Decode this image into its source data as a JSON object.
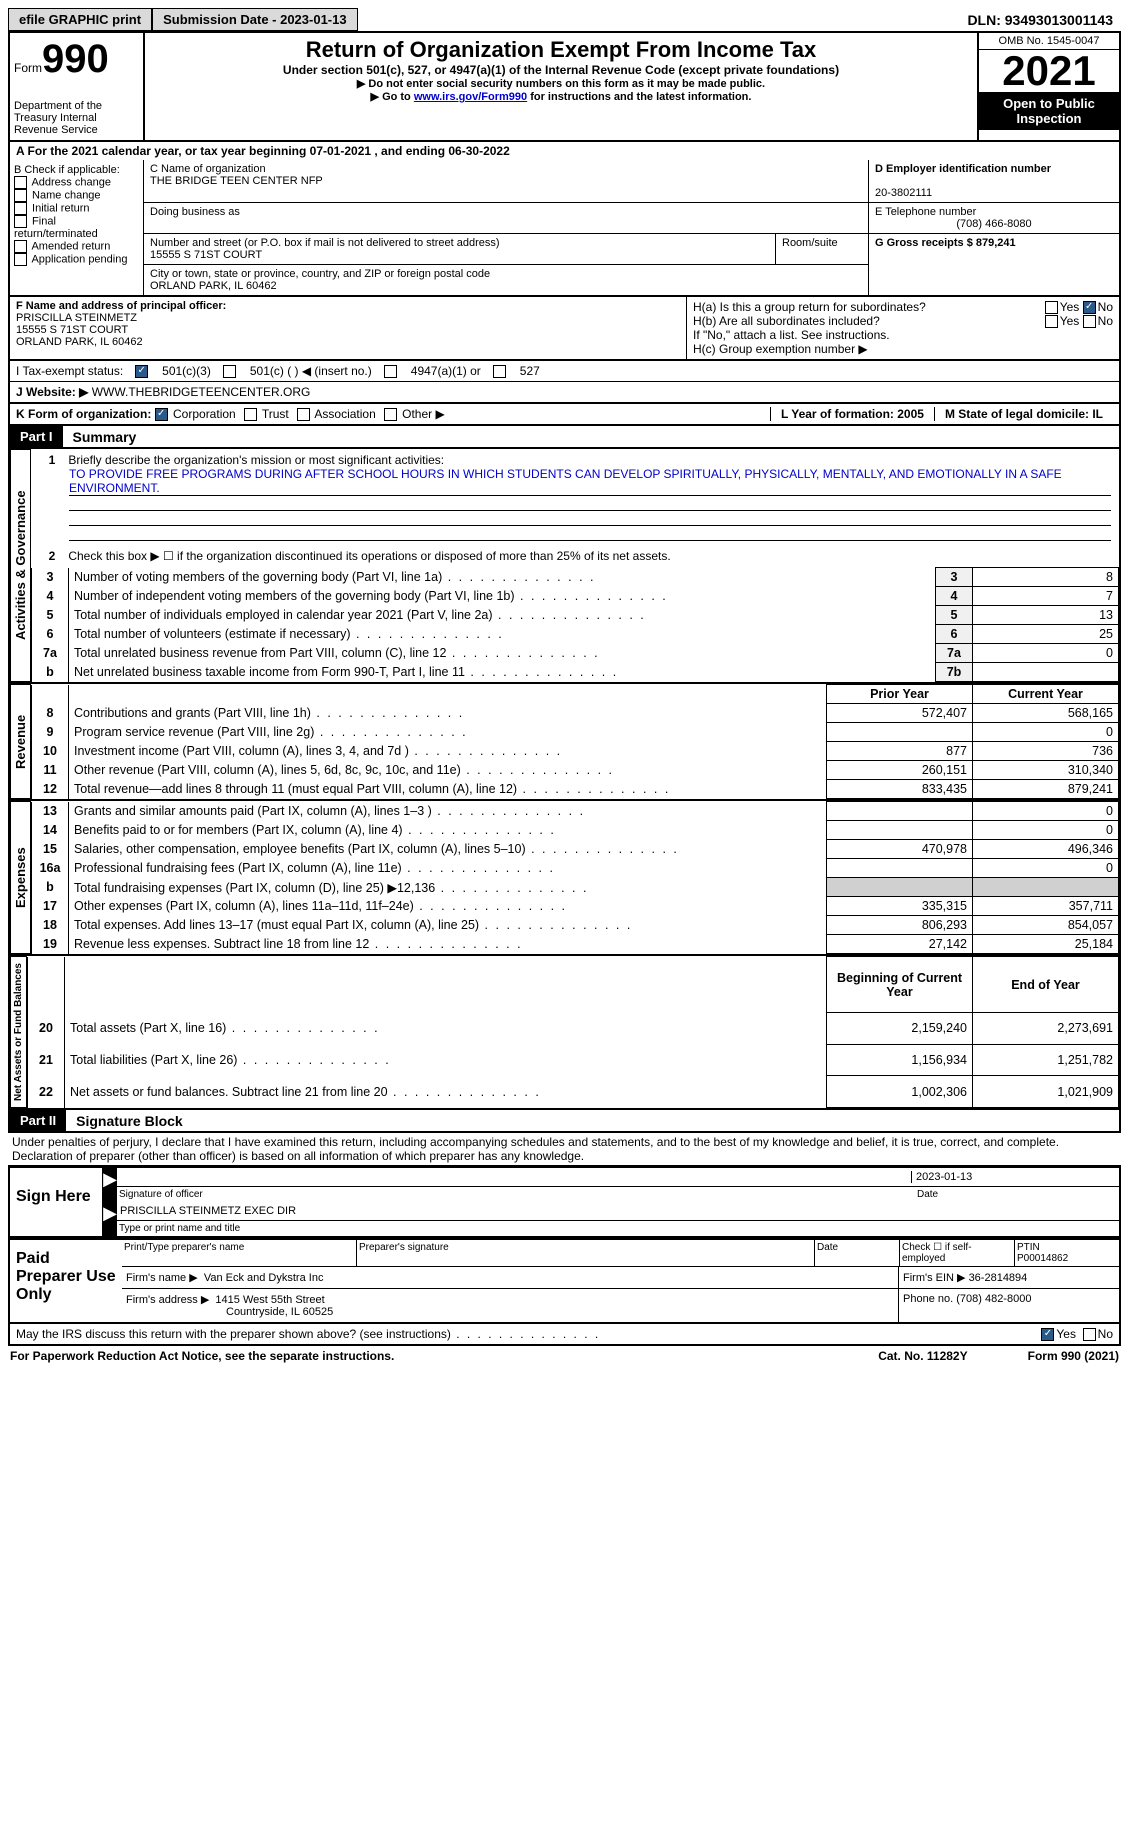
{
  "topbar": {
    "efile": "efile GRAPHIC print",
    "submission_label": "Submission Date - 2023-01-13",
    "dln_label": "DLN: 93493013001143"
  },
  "header": {
    "form_prefix": "Form",
    "form_number": "990",
    "dept": "Department of the Treasury\nInternal Revenue Service",
    "title": "Return of Organization Exempt From Income Tax",
    "subtitle": "Under section 501(c), 527, or 4947(a)(1) of the Internal Revenue Code (except private foundations)",
    "note1": "▶ Do not enter social security numbers on this form as it may be made public.",
    "note2_prefix": "▶ Go to ",
    "note2_link": "www.irs.gov/Form990",
    "note2_suffix": " for instructions and the latest information.",
    "omb": "OMB No. 1545-0047",
    "year": "2021",
    "inspection": "Open to Public Inspection"
  },
  "line_a": "A For the 2021 calendar year, or tax year beginning 07-01-2021   , and ending 06-30-2022",
  "section_b": {
    "label": "B Check if applicable:",
    "opts": [
      "Address change",
      "Name change",
      "Initial return",
      "Final return/terminated",
      "Amended return",
      "Application pending"
    ]
  },
  "section_c": {
    "name_label": "C Name of organization",
    "name": "THE BRIDGE TEEN CENTER NFP",
    "dba_label": "Doing business as",
    "addr_label": "Number and street (or P.O. box if mail is not delivered to street address)",
    "room_label": "Room/suite",
    "addr": "15555 S 71ST COURT",
    "city_label": "City or town, state or province, country, and ZIP or foreign postal code",
    "city": "ORLAND PARK, IL  60462"
  },
  "section_d": {
    "label": "D Employer identification number",
    "value": "20-3802111"
  },
  "section_e": {
    "label": "E Telephone number",
    "value": "(708) 466-8080"
  },
  "section_g": {
    "label": "G Gross receipts $ 879,241"
  },
  "section_f": {
    "label": "F  Name and address of principal officer:",
    "name": "PRISCILLA STEINMETZ",
    "addr1": "15555 S 71ST COURT",
    "addr2": "ORLAND PARK, IL  60462"
  },
  "section_h": {
    "ha": "H(a)  Is this a group return for subordinates?",
    "hb": "H(b)  Are all subordinates included?",
    "hb_note": "If \"No,\" attach a list. See instructions.",
    "hc": "H(c)  Group exemption number ▶",
    "yes": "Yes",
    "no": "No"
  },
  "section_i": {
    "label": "I    Tax-exempt status:",
    "opt1": "501(c)(3)",
    "opt2": "501(c) (  ) ◀ (insert no.)",
    "opt3": "4947(a)(1) or",
    "opt4": "527"
  },
  "section_j": {
    "label": "J    Website: ▶",
    "value": "WWW.THEBRIDGETEENCENTER.ORG"
  },
  "section_k": {
    "label": "K Form of organization:",
    "opts": [
      "Corporation",
      "Trust",
      "Association",
      "Other ▶"
    ]
  },
  "section_l": {
    "label": "L Year of formation: 2005"
  },
  "section_m": {
    "label": "M State of legal domicile: IL"
  },
  "part1": {
    "header": "Part I",
    "title": "Summary",
    "mission_label": "Briefly describe the organization's mission or most significant activities:",
    "mission": "TO PROVIDE FREE PROGRAMS DURING AFTER SCHOOL HOURS IN WHICH STUDENTS CAN DEVELOP SPIRITUALLY, PHYSICALLY, MENTALLY, AND EMOTIONALLY IN A SAFE ENVIRONMENT.",
    "line2": "Check this box ▶ ☐ if the organization discontinued its operations or disposed of more than 25% of its net assets.",
    "rows_ag": [
      {
        "n": "3",
        "desc": "Number of voting members of the governing body (Part VI, line 1a)",
        "box": "3",
        "val": "8"
      },
      {
        "n": "4",
        "desc": "Number of independent voting members of the governing body (Part VI, line 1b)",
        "box": "4",
        "val": "7"
      },
      {
        "n": "5",
        "desc": "Total number of individuals employed in calendar year 2021 (Part V, line 2a)",
        "box": "5",
        "val": "13"
      },
      {
        "n": "6",
        "desc": "Total number of volunteers (estimate if necessary)",
        "box": "6",
        "val": "25"
      },
      {
        "n": "7a",
        "desc": "Total unrelated business revenue from Part VIII, column (C), line 12",
        "box": "7a",
        "val": "0"
      },
      {
        "n": "b",
        "desc": "Net unrelated business taxable income from Form 990-T, Part I, line 11",
        "box": "7b",
        "val": ""
      }
    ],
    "col_prior": "Prior Year",
    "col_current": "Current Year",
    "rows_rev": [
      {
        "n": "8",
        "desc": "Contributions and grants (Part VIII, line 1h)",
        "p": "572,407",
        "c": "568,165"
      },
      {
        "n": "9",
        "desc": "Program service revenue (Part VIII, line 2g)",
        "p": "",
        "c": "0"
      },
      {
        "n": "10",
        "desc": "Investment income (Part VIII, column (A), lines 3, 4, and 7d )",
        "p": "877",
        "c": "736"
      },
      {
        "n": "11",
        "desc": "Other revenue (Part VIII, column (A), lines 5, 6d, 8c, 9c, 10c, and 11e)",
        "p": "260,151",
        "c": "310,340"
      },
      {
        "n": "12",
        "desc": "Total revenue—add lines 8 through 11 (must equal Part VIII, column (A), line 12)",
        "p": "833,435",
        "c": "879,241"
      }
    ],
    "rows_exp": [
      {
        "n": "13",
        "desc": "Grants and similar amounts paid (Part IX, column (A), lines 1–3 )",
        "p": "",
        "c": "0"
      },
      {
        "n": "14",
        "desc": "Benefits paid to or for members (Part IX, column (A), line 4)",
        "p": "",
        "c": "0"
      },
      {
        "n": "15",
        "desc": "Salaries, other compensation, employee benefits (Part IX, column (A), lines 5–10)",
        "p": "470,978",
        "c": "496,346"
      },
      {
        "n": "16a",
        "desc": "Professional fundraising fees (Part IX, column (A), line 11e)",
        "p": "",
        "c": "0"
      },
      {
        "n": "b",
        "desc": "Total fundraising expenses (Part IX, column (D), line 25) ▶12,136",
        "p": "GRAY",
        "c": "GRAY"
      },
      {
        "n": "17",
        "desc": "Other expenses (Part IX, column (A), lines 11a–11d, 11f–24e)",
        "p": "335,315",
        "c": "357,711"
      },
      {
        "n": "18",
        "desc": "Total expenses. Add lines 13–17 (must equal Part IX, column (A), line 25)",
        "p": "806,293",
        "c": "854,057"
      },
      {
        "n": "19",
        "desc": "Revenue less expenses. Subtract line 18 from line 12",
        "p": "27,142",
        "c": "25,184"
      }
    ],
    "col_begin": "Beginning of Current Year",
    "col_end": "End of Year",
    "rows_na": [
      {
        "n": "20",
        "desc": "Total assets (Part X, line 16)",
        "p": "2,159,240",
        "c": "2,273,691"
      },
      {
        "n": "21",
        "desc": "Total liabilities (Part X, line 26)",
        "p": "1,156,934",
        "c": "1,251,782"
      },
      {
        "n": "22",
        "desc": "Net assets or fund balances. Subtract line 21 from line 20",
        "p": "1,002,306",
        "c": "1,021,909"
      }
    ],
    "vlabels": {
      "ag": "Activities & Governance",
      "rev": "Revenue",
      "exp": "Expenses",
      "na": "Net Assets or\nFund Balances"
    }
  },
  "part2": {
    "header": "Part II",
    "title": "Signature Block",
    "penalty": "Under penalties of perjury, I declare that I have examined this return, including accompanying schedules and statements, and to the best of my knowledge and belief, it is true, correct, and complete. Declaration of preparer (other than officer) is based on all information of which preparer has any knowledge.",
    "sign_here": "Sign Here",
    "sig_officer": "Signature of officer",
    "sig_date": "2023-01-13",
    "date_label": "Date",
    "name_title": "PRISCILLA STEINMETZ  EXEC DIR",
    "name_title_label": "Type or print name and title",
    "paid_prep": "Paid Preparer Use Only",
    "prep_name_label": "Print/Type preparer's name",
    "prep_sig_label": "Preparer's signature",
    "check_self": "Check ☐ if self-employed",
    "ptin_label": "PTIN",
    "ptin": "P00014862",
    "firm_name_label": "Firm's name    ▶",
    "firm_name": "Van Eck and Dykstra Inc",
    "firm_ein_label": "Firm's EIN ▶",
    "firm_ein": "36-2814894",
    "firm_addr_label": "Firm's address ▶",
    "firm_addr1": "1415 West 55th Street",
    "firm_addr2": "Countryside, IL  60525",
    "phone_label": "Phone no.",
    "phone": "(708) 482-8000",
    "discuss": "May the IRS discuss this return with the preparer shown above? (see instructions)",
    "yes": "Yes",
    "no": "No"
  },
  "footer": {
    "paperwork": "For Paperwork Reduction Act Notice, see the separate instructions.",
    "cat": "Cat. No. 11282Y",
    "form": "Form 990 (2021)"
  }
}
